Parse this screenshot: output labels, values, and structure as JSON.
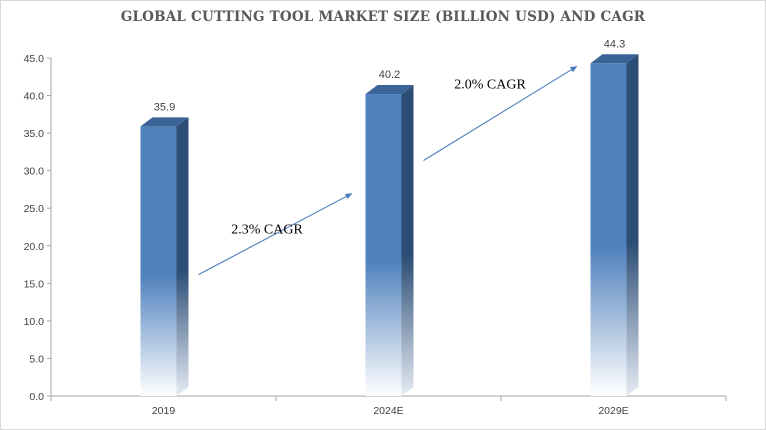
{
  "chart_data": {
    "type": "bar",
    "title": "GLOBAL CUTTING TOOL MARKET SIZE (BILLION USD) AND CAGR",
    "categories": [
      "2019",
      "2024E",
      "2029E"
    ],
    "values": [
      35.9,
      40.2,
      44.3
    ],
    "data_labels": [
      "35.9",
      "40.2",
      "44.3"
    ],
    "y_ticks": [
      "0.0",
      "5.0",
      "10.0",
      "15.0",
      "20.0",
      "25.0",
      "30.0",
      "35.0",
      "40.0",
      "45.0"
    ],
    "ylim": [
      0,
      45
    ],
    "xlabel": "",
    "ylabel": "",
    "grid": false,
    "legend": "none",
    "bar_color": "#4f81bd",
    "bar_side_color": "#2c4d75",
    "annotations": [
      {
        "text": "2.3% CAGR",
        "from": "2019",
        "to": "2024E"
      },
      {
        "text": "2.0% CAGR",
        "from": "2024E",
        "to": "2029E"
      }
    ]
  }
}
